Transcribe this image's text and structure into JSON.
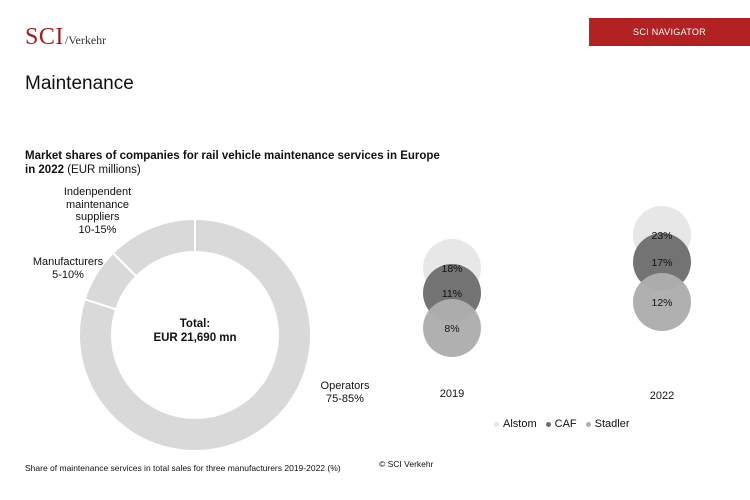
{
  "header": {
    "logo_main": "SCI",
    "logo_sub": "/Verkehr",
    "nav_button": "SCI NAVIGATOR"
  },
  "page_title": "Maintenance",
  "colors": {
    "brand_red": "#b22222",
    "donut_fill": "#d9d9d9",
    "alstom": "#e6e6e6",
    "caf": "#6e6e6e",
    "stadler": "#adadad"
  },
  "chart_data": [
    {
      "type": "pie",
      "subtype": "donut",
      "title_bold": "Market shares of companies for rail vehicle maintenance services in Europe in 2022",
      "title_rest": " (EUR millions)",
      "center_label_line1": "Total:",
      "center_label_line2": "EUR 21,690 mn",
      "slices": [
        {
          "label_lines": [
            "Operators",
            "75-85%"
          ],
          "value": 80
        },
        {
          "label_lines": [
            "Manufacturers",
            "5-10%"
          ],
          "value": 7.5
        },
        {
          "label_lines": [
            "Indenpendent",
            "maintenance",
            "suppliers",
            "10-15%"
          ],
          "value": 12.5
        }
      ]
    },
    {
      "type": "scatter",
      "subtype": "bubble",
      "categories": [
        "2019",
        "2022"
      ],
      "series": [
        {
          "name": "Alstom",
          "values": [
            18,
            23
          ],
          "labels": [
            "18%",
            "23%"
          ]
        },
        {
          "name": "CAF",
          "values": [
            11,
            17
          ],
          "labels": [
            "11%",
            "17%"
          ]
        },
        {
          "name": "Stadler",
          "values": [
            8,
            12
          ],
          "labels": [
            "8%",
            "12%"
          ]
        }
      ],
      "legend_position": "bottom"
    }
  ],
  "footnote": "Share of maintenance services in total sales for three manufacturers 2019-2022 (%)",
  "copyright": "© SCI Verkehr"
}
